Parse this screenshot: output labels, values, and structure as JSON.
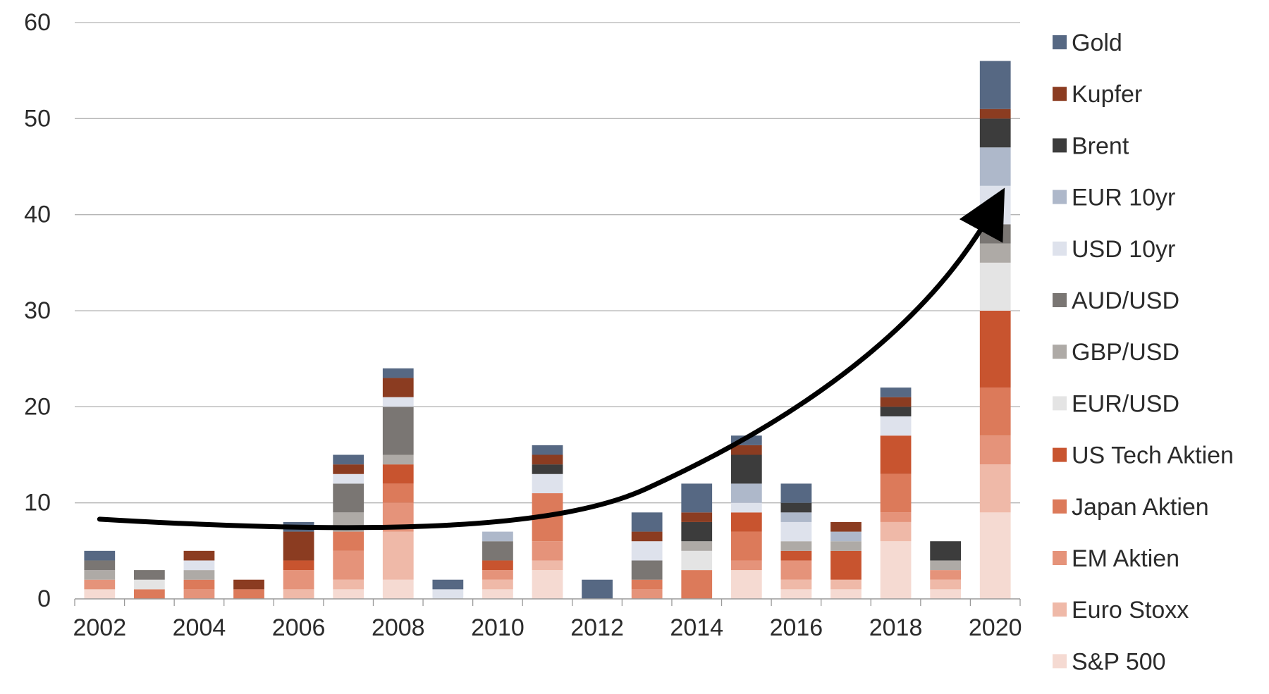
{
  "chart_data": {
    "type": "bar",
    "stacked": true,
    "title": "",
    "xlabel": "",
    "ylabel": "",
    "ylim": [
      0,
      60
    ],
    "yticks": [
      0,
      10,
      20,
      30,
      40,
      50,
      60
    ],
    "grid": true,
    "legend_position": "right",
    "categories": [
      "2002",
      "2003",
      "2004",
      "2005",
      "2006",
      "2007",
      "2008",
      "2009",
      "2010",
      "2011",
      "2012",
      "2013",
      "2014",
      "2015",
      "2016",
      "2017",
      "2018",
      "2019",
      "2020"
    ],
    "x_tick_labels": [
      "2002",
      "2004",
      "2006",
      "2008",
      "2010",
      "2012",
      "2014",
      "2016",
      "2018",
      "2020"
    ],
    "series": [
      {
        "name": "S&P 500",
        "color": "#f5dad2",
        "values": [
          1,
          0,
          0,
          0,
          0,
          1,
          2,
          0,
          1,
          3,
          0,
          0,
          0,
          3,
          1,
          1,
          6,
          1,
          9
        ]
      },
      {
        "name": "Euro Stoxx",
        "color": "#efb9a8",
        "values": [
          0,
          0,
          0,
          0,
          1,
          1,
          5,
          0,
          1,
          1,
          0,
          0,
          0,
          0,
          1,
          1,
          2,
          1,
          5
        ]
      },
      {
        "name": "EM Aktien",
        "color": "#e5937a",
        "values": [
          1,
          0,
          1,
          0,
          2,
          3,
          3,
          0,
          1,
          2,
          0,
          1,
          0,
          1,
          2,
          0,
          1,
          1,
          3
        ]
      },
      {
        "name": "Japan Aktien",
        "color": "#dc7a5a",
        "values": [
          0,
          1,
          1,
          1,
          0,
          2,
          2,
          0,
          0,
          5,
          0,
          1,
          3,
          3,
          0,
          0,
          4,
          0,
          5
        ]
      },
      {
        "name": "US Tech Aktien",
        "color": "#c8542f",
        "values": [
          0,
          0,
          0,
          0,
          1,
          0,
          2,
          0,
          1,
          0,
          0,
          0,
          0,
          2,
          1,
          3,
          4,
          0,
          8
        ]
      },
      {
        "name": "EUR/USD",
        "color": "#e4e4e4",
        "values": [
          0,
          1,
          0,
          0,
          0,
          0,
          0,
          0,
          0,
          0,
          0,
          0,
          2,
          0,
          0,
          0,
          0,
          0,
          5
        ]
      },
      {
        "name": "GBP/USD",
        "color": "#aeaaa6",
        "values": [
          1,
          0,
          1,
          0,
          0,
          2,
          1,
          0,
          0,
          0,
          0,
          0,
          1,
          0,
          1,
          1,
          0,
          1,
          2
        ]
      },
      {
        "name": "AUD/USD",
        "color": "#7a7673",
        "values": [
          1,
          1,
          0,
          0,
          0,
          3,
          5,
          0,
          2,
          0,
          0,
          2,
          0,
          0,
          0,
          0,
          0,
          0,
          2
        ]
      },
      {
        "name": "USD 10yr",
        "color": "#dee2ec",
        "values": [
          0,
          0,
          1,
          0,
          0,
          1,
          1,
          1,
          0,
          2,
          0,
          2,
          0,
          1,
          2,
          0,
          2,
          0,
          4
        ]
      },
      {
        "name": "EUR 10yr",
        "color": "#aeb8ca",
        "values": [
          0,
          0,
          0,
          0,
          0,
          0,
          0,
          0,
          1,
          0,
          0,
          0,
          0,
          2,
          1,
          1,
          0,
          0,
          4
        ]
      },
      {
        "name": "Brent",
        "color": "#3c3c3c",
        "values": [
          0,
          0,
          0,
          0,
          0,
          0,
          0,
          0,
          0,
          1,
          0,
          0,
          2,
          3,
          1,
          0,
          1,
          2,
          3
        ]
      },
      {
        "name": "Kupfer",
        "color": "#8b3c21",
        "values": [
          0,
          0,
          1,
          1,
          3,
          1,
          2,
          0,
          0,
          1,
          0,
          1,
          1,
          1,
          0,
          1,
          1,
          0,
          1
        ]
      },
      {
        "name": "Gold",
        "color": "#566883",
        "values": [
          1,
          0,
          0,
          0,
          1,
          1,
          1,
          1,
          0,
          1,
          2,
          2,
          3,
          1,
          2,
          0,
          1,
          0,
          5
        ]
      }
    ],
    "legend_order": [
      "Gold",
      "Kupfer",
      "Brent",
      "EUR 10yr",
      "USD 10yr",
      "AUD/USD",
      "GBP/USD",
      "EUR/USD",
      "US Tech Aktien",
      "Japan Aktien",
      "EM Aktien",
      "Euro Stoxx",
      "S&P 500"
    ],
    "annotations": [
      {
        "type": "trend-arrow",
        "description": "curved upward arrow",
        "from": {
          "x": "2002",
          "y": 8.3
        },
        "via": {
          "x": "2013",
          "y": 11.5
        },
        "to": {
          "x": "2020",
          "y": 41
        }
      }
    ]
  }
}
